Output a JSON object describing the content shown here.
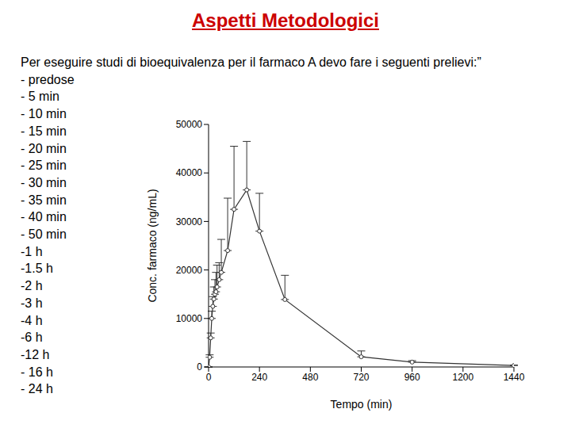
{
  "title": "Aspetti Metodologici",
  "text": {
    "intro": "Per eseguire studi di bioequivalenza per il farmaco A devo fare i seguenti prelievi:”",
    "items": [
      "- predose",
      "- 5 min",
      "- 10 min",
      "- 15 min",
      "- 20 min",
      "- 25 min",
      "- 30 min",
      "- 35 min",
      "- 40 min",
      "- 50 min",
      "-1 h",
      "-1.5 h",
      "-2 h",
      "-3 h",
      "-4 h",
      "-6 h",
      "-12 h",
      "- 16 h",
      "- 24 h"
    ]
  },
  "chart_data": {
    "type": "line",
    "x_label": "Tempo (min)",
    "y_label": "Conc. farmaco (ng/mL)",
    "x": [
      0,
      5,
      10,
      15,
      20,
      25,
      30,
      35,
      40,
      50,
      60,
      90,
      120,
      180,
      240,
      360,
      720,
      960,
      1440
    ],
    "values": [
      0,
      2000,
      6000,
      10000,
      12500,
      14000,
      15000,
      15500,
      16500,
      18000,
      19500,
      24000,
      32500,
      36500,
      28000,
      13900,
      2100,
      1000,
      300
    ],
    "errors": [
      0,
      500,
      1000,
      1500,
      2000,
      2500,
      3000,
      4000,
      4500,
      3500,
      6800,
      10800,
      13000,
      10000,
      7800,
      5000,
      1200,
      300,
      100
    ],
    "color": "#333333",
    "marker": "circle",
    "xlim": [
      0,
      1440
    ],
    "xticks": [
      0,
      240,
      480,
      720,
      960,
      1200,
      1440
    ],
    "ylim": [
      0,
      50000
    ],
    "yticks": [
      0,
      10000,
      20000,
      30000,
      40000,
      50000
    ],
    "grid": false
  }
}
